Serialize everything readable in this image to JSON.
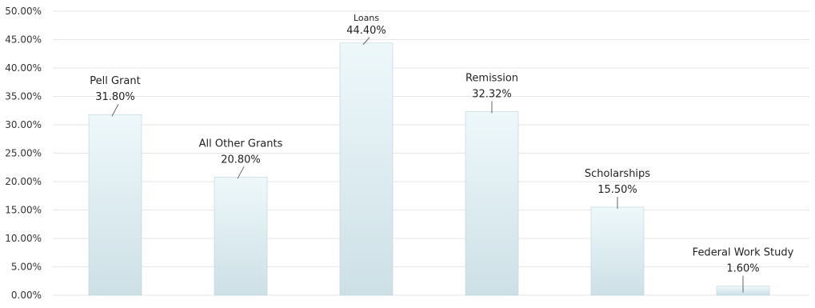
{
  "chart_data": {
    "type": "bar",
    "categories": [
      "Pell Grant",
      "All Other Grants",
      "Loans",
      "Remission",
      "Scholarships",
      "Federal Work Study"
    ],
    "values": [
      31.8,
      20.8,
      44.4,
      32.32,
      15.5,
      1.6
    ],
    "value_labels": [
      "31.80%",
      "20.80%",
      "44.40%",
      "32.32%",
      "15.50%",
      "1.60%"
    ],
    "title": "",
    "xlabel": "",
    "ylabel": "",
    "ylim": [
      0,
      50
    ],
    "yticks": [
      0,
      5,
      10,
      15,
      20,
      25,
      30,
      35,
      40,
      45,
      50
    ],
    "ytick_labels": [
      "0.00%",
      "5.00%",
      "10.00%",
      "15.00%",
      "20.00%",
      "25.00%",
      "30.00%",
      "35.00%",
      "40.00%",
      "45.00%",
      "50.00%"
    ],
    "grid": true,
    "legend": "none",
    "colors": {
      "bar_top": "#eaf6fa",
      "bar_bottom": "#cfe2e8",
      "bar_edge": "#b9d3da",
      "grid": "#e6e6e6"
    }
  }
}
